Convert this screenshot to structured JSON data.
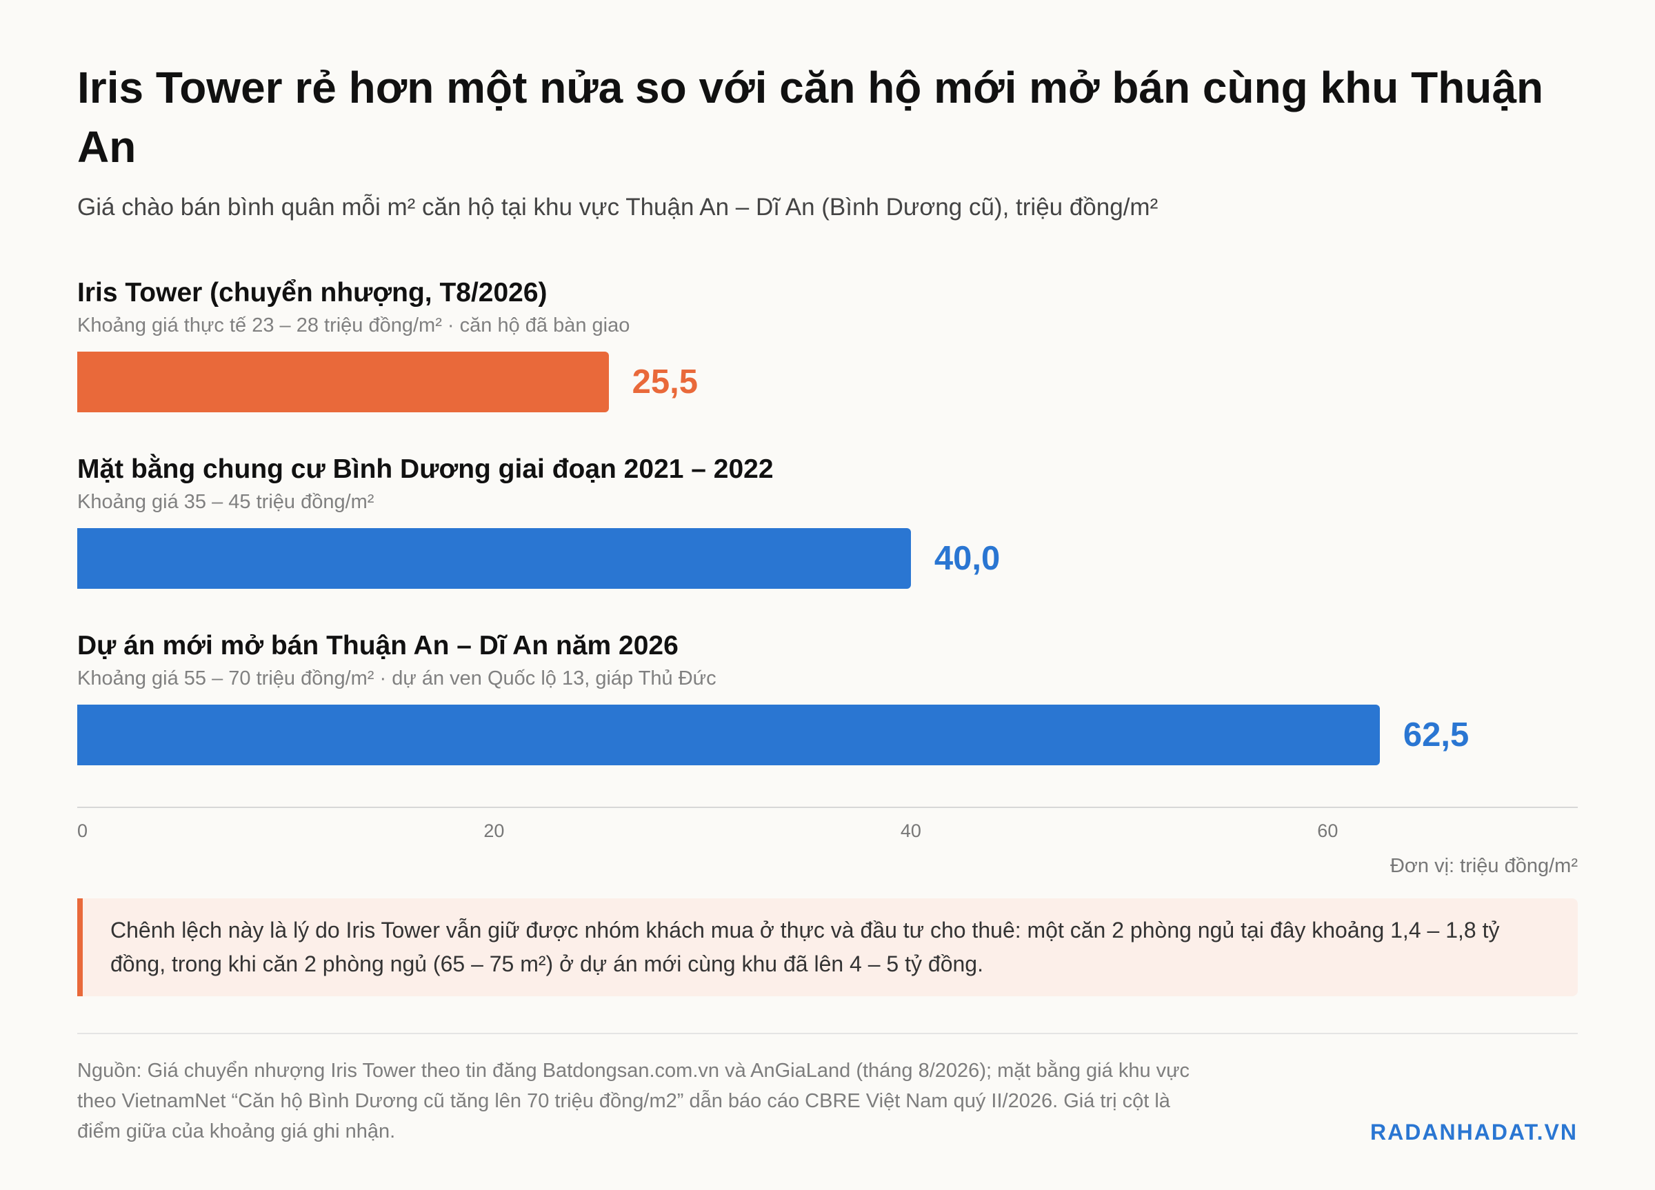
{
  "chart_data": {
    "type": "bar",
    "orientation": "horizontal",
    "title": "Iris Tower rẻ hơn một nửa so với căn hộ mới mở bán cùng khu Thuận An",
    "subtitle": "Giá chào bán bình quân mỗi m² căn hộ tại khu vực Thuận An – Dĩ An (Bình Dương cũ), triệu đồng/m²",
    "categories": [
      "Iris Tower (chuyển nhượng, T8/2026)",
      "Mặt bằng chung cư Bình Dương giai đoạn 2021 – 2022",
      "Dự án mới mở bán Thuận An – Dĩ An năm 2026"
    ],
    "notes": [
      "Khoảng giá thực tế 23 – 28 triệu đồng/m² · căn hộ đã bàn giao",
      "Khoảng giá 35 – 45 triệu đồng/m²",
      "Khoảng giá 55 – 70 triệu đồng/m² · dự án ven Quốc lộ 13, giáp Thủ Đức"
    ],
    "values": [
      25.5,
      40.0,
      62.5
    ],
    "value_labels": [
      "25,5",
      "40,0",
      "62,5"
    ],
    "bar_colors": [
      "#e9693a",
      "#2a76d2",
      "#2a76d2"
    ],
    "x_ticks": [
      0,
      20,
      40,
      60
    ],
    "x_tick_labels": [
      "0",
      "20",
      "40",
      "60"
    ],
    "xlim": [
      0,
      72
    ],
    "unit_label": "Đơn vị: triệu đồng/m²",
    "grid": false,
    "legend": "none"
  },
  "callout": {
    "text": "Chênh lệch này là lý do Iris Tower vẫn giữ được nhóm khách mua ở thực và đầu tư cho thuê: một căn 2 phòng ngủ tại đây khoảng 1,4 – 1,8 tỷ đồng, trong khi căn 2 phòng ngủ (65 – 75 m²) ở dự án mới cùng khu đã lên 4 – 5 tỷ đồng.",
    "accent_color": "#e9693a"
  },
  "footer": {
    "source": "Nguồn: Giá chuyển nhượng Iris Tower theo tin đăng Batdongsan.com.vn và AnGiaLand (tháng 8/2026); mặt bằng giá khu vực theo VietnamNet “Căn hộ Bình Dương cũ tăng lên 70 triệu đồng/m2” dẫn báo cáo CBRE Việt Nam quý II/2026. Giá trị cột là điểm giữa của khoảng giá ghi nhận.",
    "brand": "RADANHADAT.VN"
  }
}
